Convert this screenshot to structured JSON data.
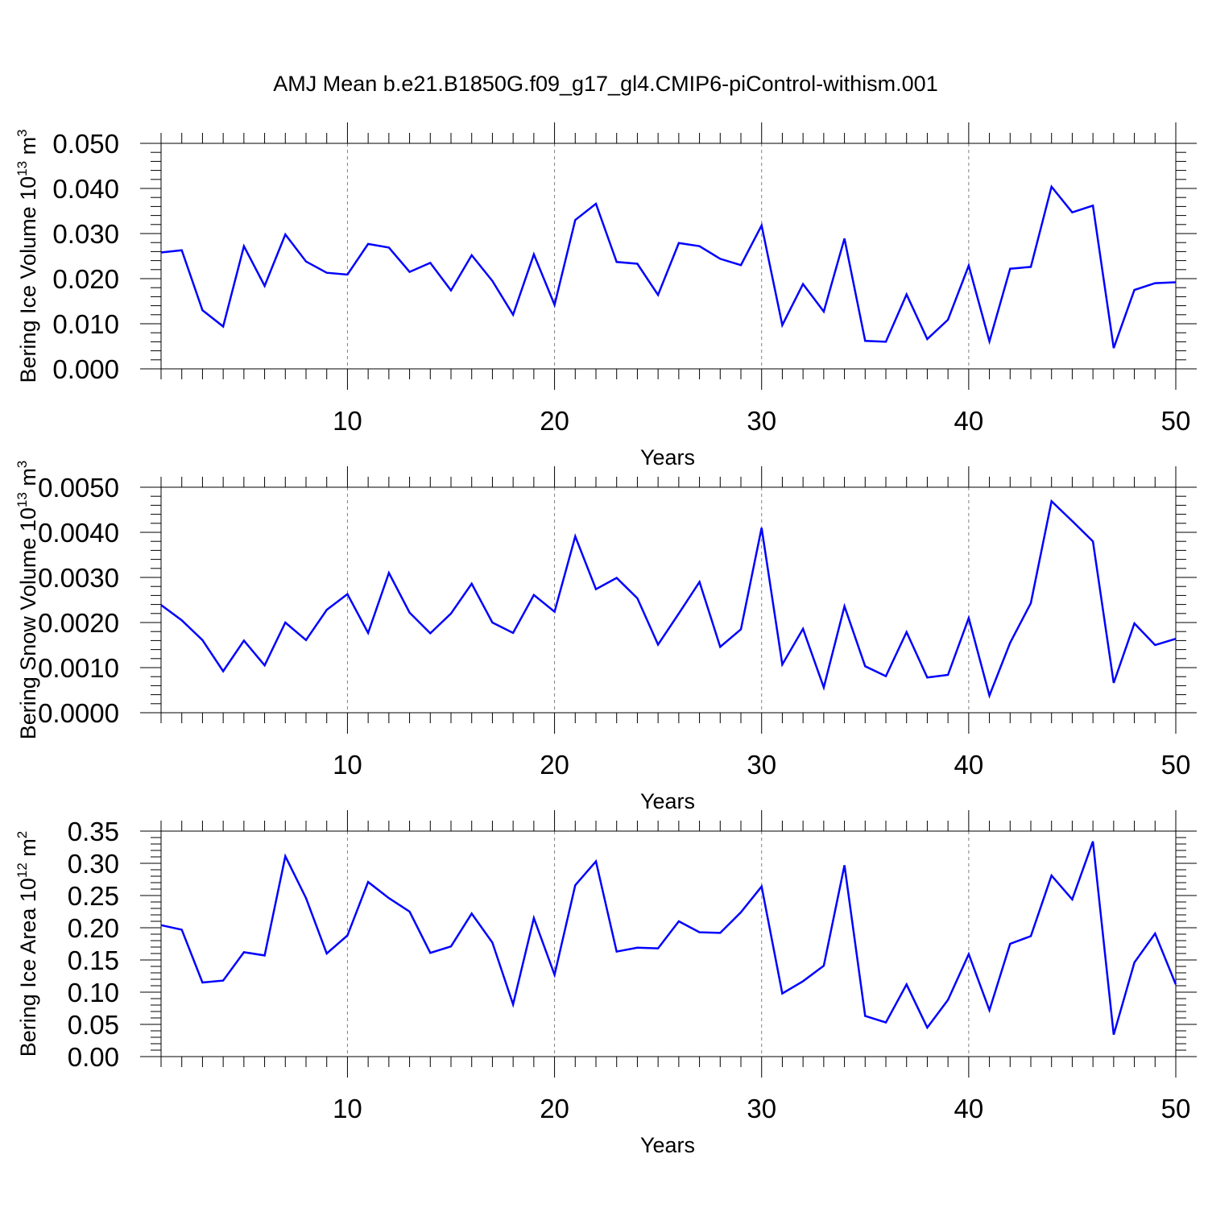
{
  "figure": {
    "title": "AMJ Mean b.e21.B1850G.f09_g17_gl4.CMIP6-piControl-withism.001"
  },
  "colors": {
    "line": "#0000ff",
    "axis": "#000000",
    "grid": "#808080",
    "background": "#ffffff"
  },
  "chart_data": [
    {
      "type": "line",
      "title": "AMJ Mean b.e21.B1850G.f09_g17_gl4.CMIP6-piControl-withism.001",
      "xlabel": "Years",
      "ylabel": {
        "text": "Bering Ice Volume 10",
        "exponent": "13",
        "unit": " m",
        "unit_exponent": "3"
      },
      "xlim": [
        1,
        50
      ],
      "ylim": [
        0,
        0.05
      ],
      "xticks": [
        10,
        20,
        30,
        40,
        50
      ],
      "yticks": [
        "0.000",
        "0.010",
        "0.020",
        "0.030",
        "0.040",
        "0.050"
      ],
      "ytick_values": [
        0,
        0.01,
        0.02,
        0.03,
        0.04,
        0.05
      ],
      "y_minor_step": 0.002,
      "grid": "vertical dashed at major x ticks",
      "x": [
        1,
        2,
        3,
        4,
        5,
        6,
        7,
        8,
        9,
        10,
        11,
        12,
        13,
        14,
        15,
        16,
        17,
        18,
        19,
        20,
        21,
        22,
        23,
        24,
        25,
        26,
        27,
        28,
        29,
        30,
        31,
        32,
        33,
        34,
        35,
        36,
        37,
        38,
        39,
        40,
        41,
        42,
        43,
        44,
        45,
        46,
        47,
        48,
        49,
        50
      ],
      "values": [
        0.0258,
        0.0263,
        0.013,
        0.0094,
        0.0272,
        0.0184,
        0.0298,
        0.0238,
        0.0213,
        0.0209,
        0.0277,
        0.0269,
        0.0215,
        0.0235,
        0.0174,
        0.0252,
        0.0195,
        0.012,
        0.0254,
        0.0142,
        0.033,
        0.0366,
        0.0237,
        0.0233,
        0.0164,
        0.0279,
        0.0272,
        0.0244,
        0.023,
        0.0318,
        0.0097,
        0.0188,
        0.0127,
        0.0289,
        0.0062,
        0.006,
        0.0165,
        0.0066,
        0.0109,
        0.0229,
        0.0061,
        0.0222,
        0.0226,
        0.0404,
        0.0347,
        0.0362,
        0.0046,
        0.0175,
        0.019,
        0.0192
      ]
    },
    {
      "type": "line",
      "xlabel": "Years",
      "ylabel": {
        "text": "Bering Snow Volume 10",
        "exponent": "13",
        "unit": " m",
        "unit_exponent": "3"
      },
      "xlim": [
        1,
        50
      ],
      "ylim": [
        0,
        0.005
      ],
      "xticks": [
        10,
        20,
        30,
        40,
        50
      ],
      "yticks": [
        "0.0000",
        "0.0010",
        "0.0020",
        "0.0030",
        "0.0040",
        "0.0050"
      ],
      "ytick_values": [
        0,
        0.001,
        0.002,
        0.003,
        0.004,
        0.005
      ],
      "y_minor_step": 0.0002,
      "grid": "vertical dashed at major x ticks",
      "x": [
        1,
        2,
        3,
        4,
        5,
        6,
        7,
        8,
        9,
        10,
        11,
        12,
        13,
        14,
        15,
        16,
        17,
        18,
        19,
        20,
        21,
        22,
        23,
        24,
        25,
        26,
        27,
        28,
        29,
        30,
        31,
        32,
        33,
        34,
        35,
        36,
        37,
        38,
        39,
        40,
        41,
        42,
        43,
        44,
        45,
        46,
        47,
        48,
        49,
        50
      ],
      "values": [
        0.00239,
        0.00205,
        0.00161,
        0.00092,
        0.0016,
        0.00105,
        0.002,
        0.00161,
        0.00228,
        0.00263,
        0.00177,
        0.0031,
        0.00222,
        0.00176,
        0.0022,
        0.00286,
        0.002,
        0.00177,
        0.00261,
        0.00224,
        0.00391,
        0.00274,
        0.00299,
        0.00254,
        0.00151,
        0.0022,
        0.0029,
        0.00146,
        0.00185,
        0.0041,
        0.00107,
        0.00186,
        0.00056,
        0.00236,
        0.00103,
        0.00081,
        0.00179,
        0.00078,
        0.00084,
        0.0021,
        0.00038,
        0.00155,
        0.00243,
        0.00469,
        0.00425,
        0.0038,
        0.00066,
        0.00198,
        0.0015,
        0.00164
      ]
    },
    {
      "type": "line",
      "xlabel": "Years",
      "ylabel": {
        "text": "Bering Ice Area 10",
        "exponent": "12",
        "unit": " m",
        "unit_exponent": "2"
      },
      "xlim": [
        1,
        50
      ],
      "ylim": [
        0,
        0.35
      ],
      "xticks": [
        10,
        20,
        30,
        40,
        50
      ],
      "yticks": [
        "0.00",
        "0.05",
        "0.10",
        "0.15",
        "0.20",
        "0.25",
        "0.30",
        "0.35"
      ],
      "ytick_values": [
        0,
        0.05,
        0.1,
        0.15,
        0.2,
        0.25,
        0.3,
        0.35
      ],
      "y_minor_step": 0.01,
      "grid": "vertical dashed at major x ticks",
      "x": [
        1,
        2,
        3,
        4,
        5,
        6,
        7,
        8,
        9,
        10,
        11,
        12,
        13,
        14,
        15,
        16,
        17,
        18,
        19,
        20,
        21,
        22,
        23,
        24,
        25,
        26,
        27,
        28,
        29,
        30,
        31,
        32,
        33,
        34,
        35,
        36,
        37,
        38,
        39,
        40,
        41,
        42,
        43,
        44,
        45,
        46,
        47,
        48,
        49,
        50
      ],
      "values": [
        0.204,
        0.197,
        0.115,
        0.118,
        0.162,
        0.157,
        0.311,
        0.246,
        0.16,
        0.188,
        0.271,
        0.246,
        0.225,
        0.161,
        0.171,
        0.222,
        0.177,
        0.081,
        0.215,
        0.127,
        0.266,
        0.303,
        0.163,
        0.169,
        0.168,
        0.21,
        0.193,
        0.192,
        0.224,
        0.264,
        0.098,
        0.117,
        0.141,
        0.297,
        0.063,
        0.053,
        0.112,
        0.045,
        0.088,
        0.159,
        0.072,
        0.175,
        0.187,
        0.281,
        0.244,
        0.334,
        0.034,
        0.146,
        0.191,
        0.112
      ]
    }
  ]
}
